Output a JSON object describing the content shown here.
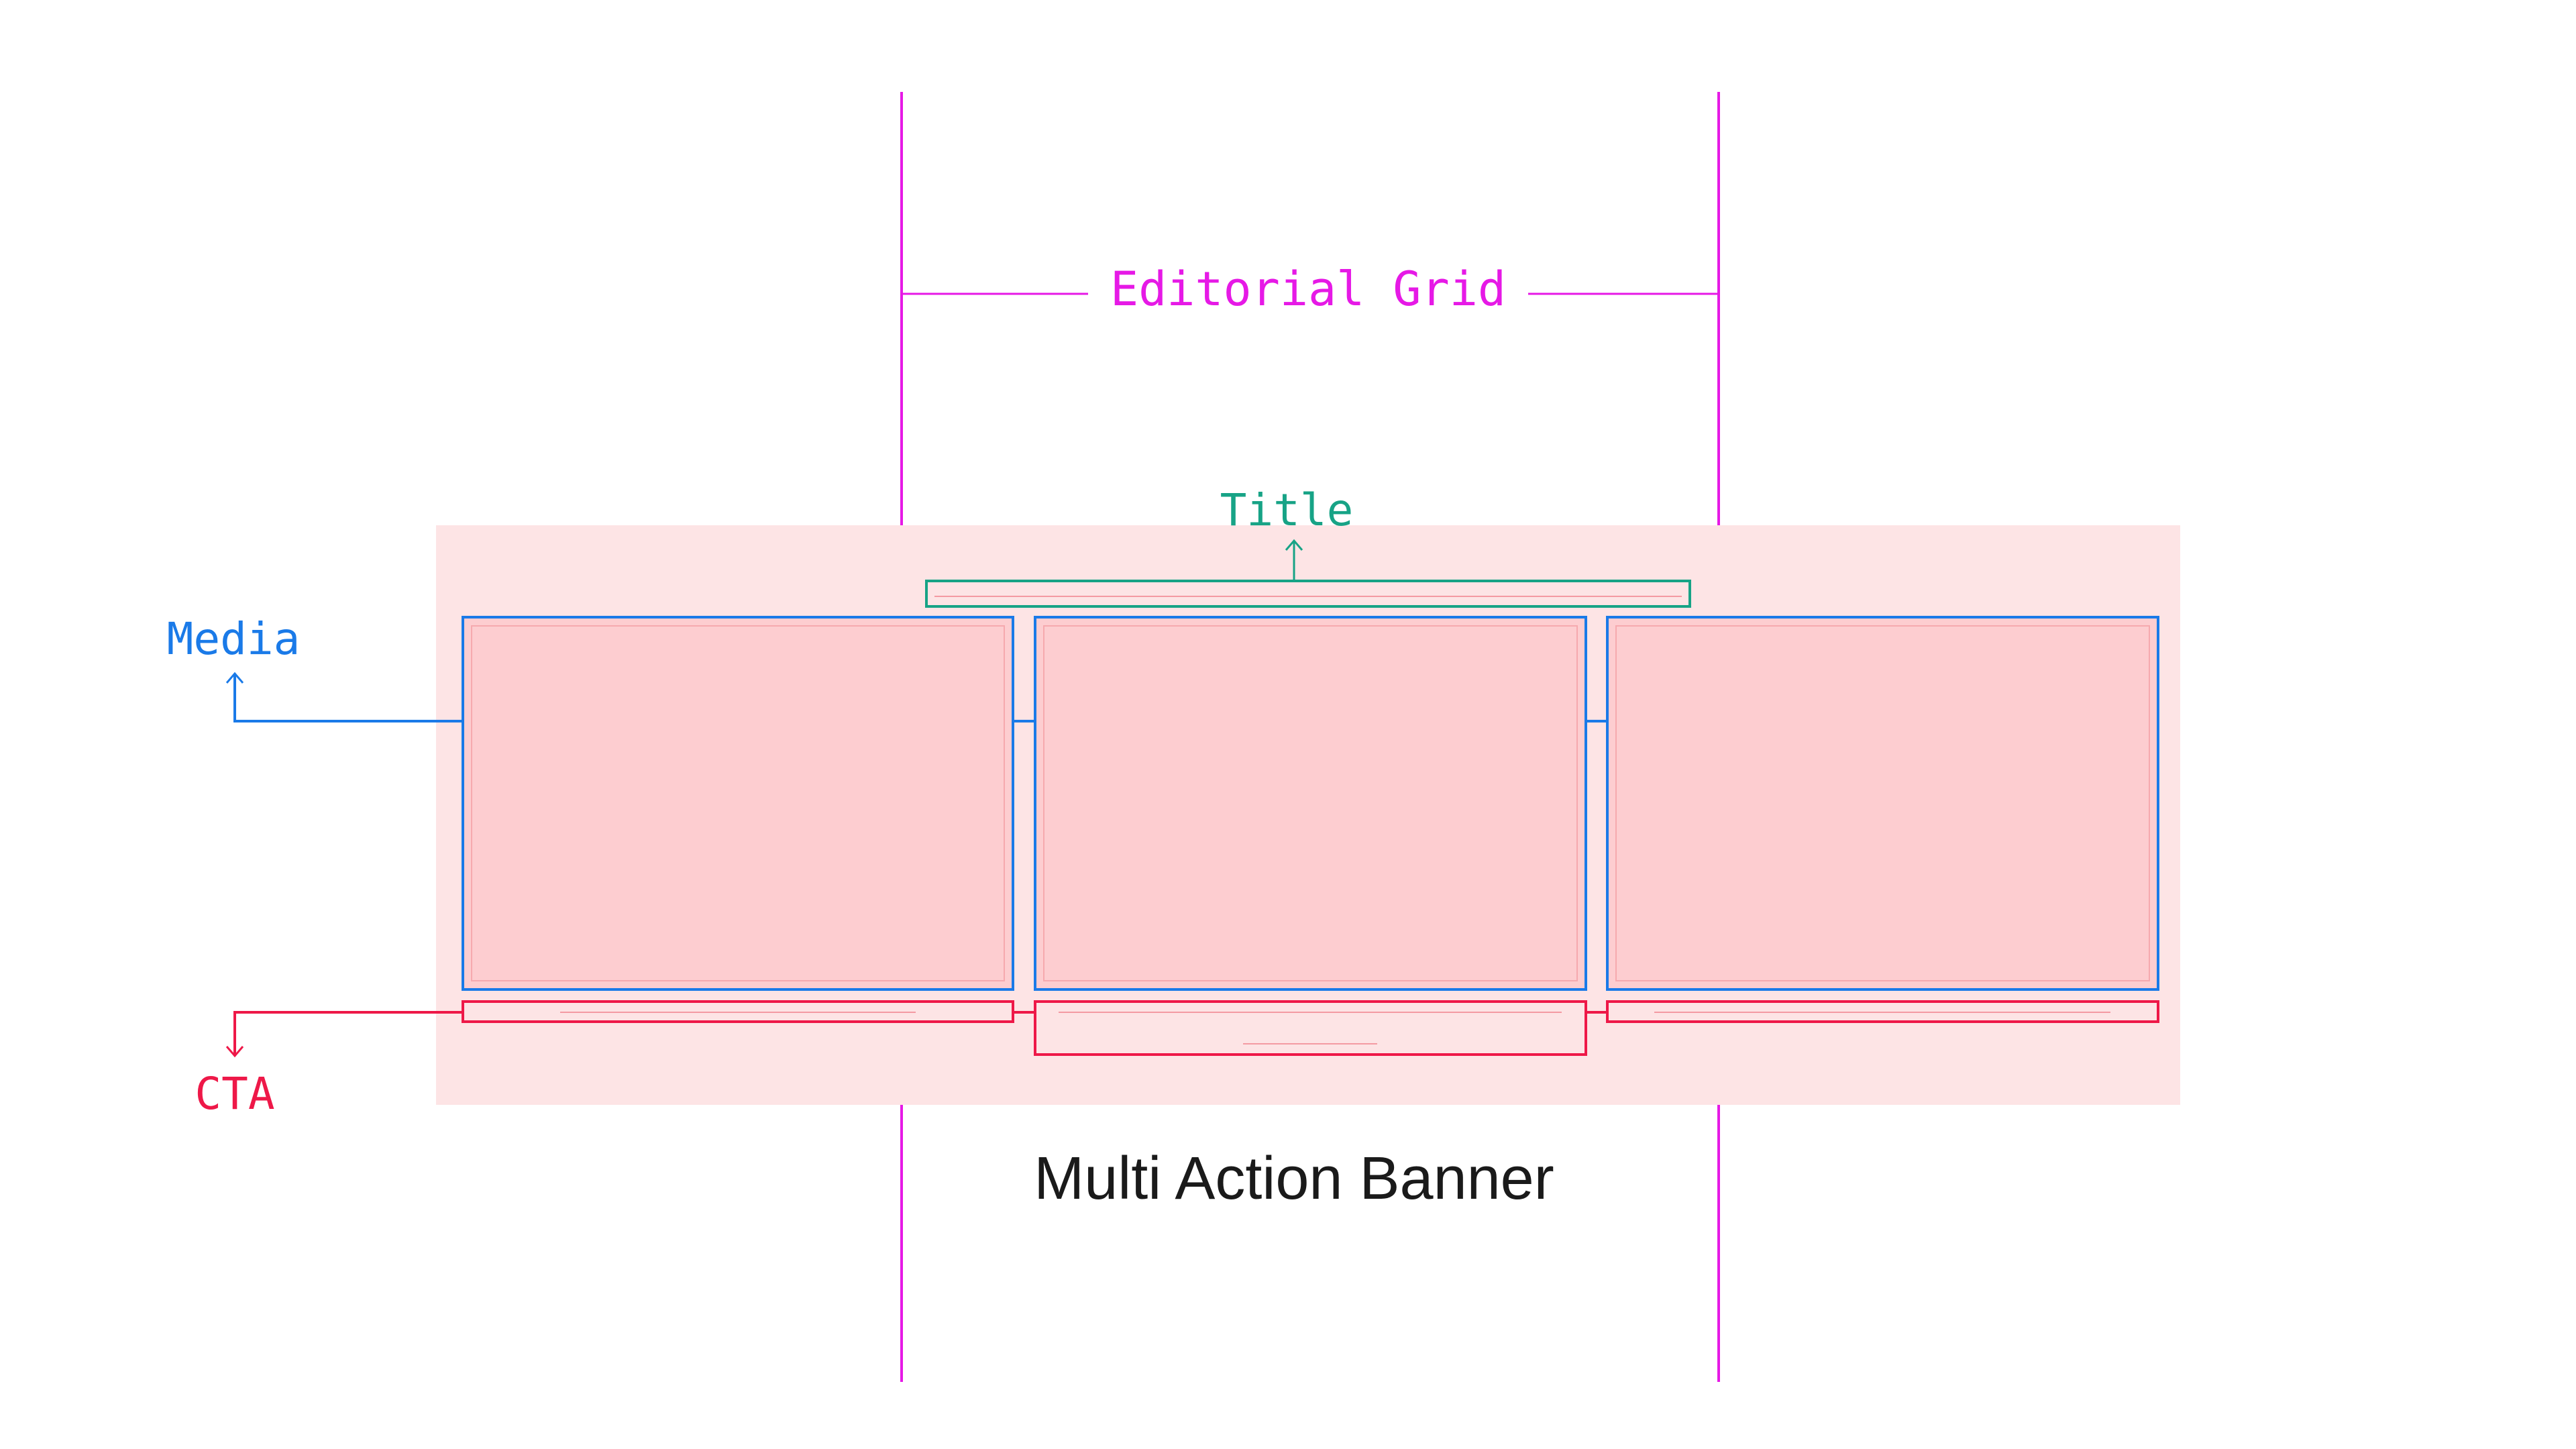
{
  "labels": {
    "editorial_grid": "Editorial Grid",
    "title": "Title",
    "media": "Media",
    "cta": "CTA",
    "component_name": "Multi Action Banner"
  },
  "colors": {
    "grid": "#e619e6",
    "title": "#17a386",
    "media": "#1a7ae8",
    "cta": "#ee1848",
    "banner_bg": "#fde4e5",
    "media_fill": "#fdcdd0",
    "media_inner_stroke": "#f6a9ae",
    "cta_line": "#f49aa2",
    "caption_text": "#1a1a1a"
  }
}
